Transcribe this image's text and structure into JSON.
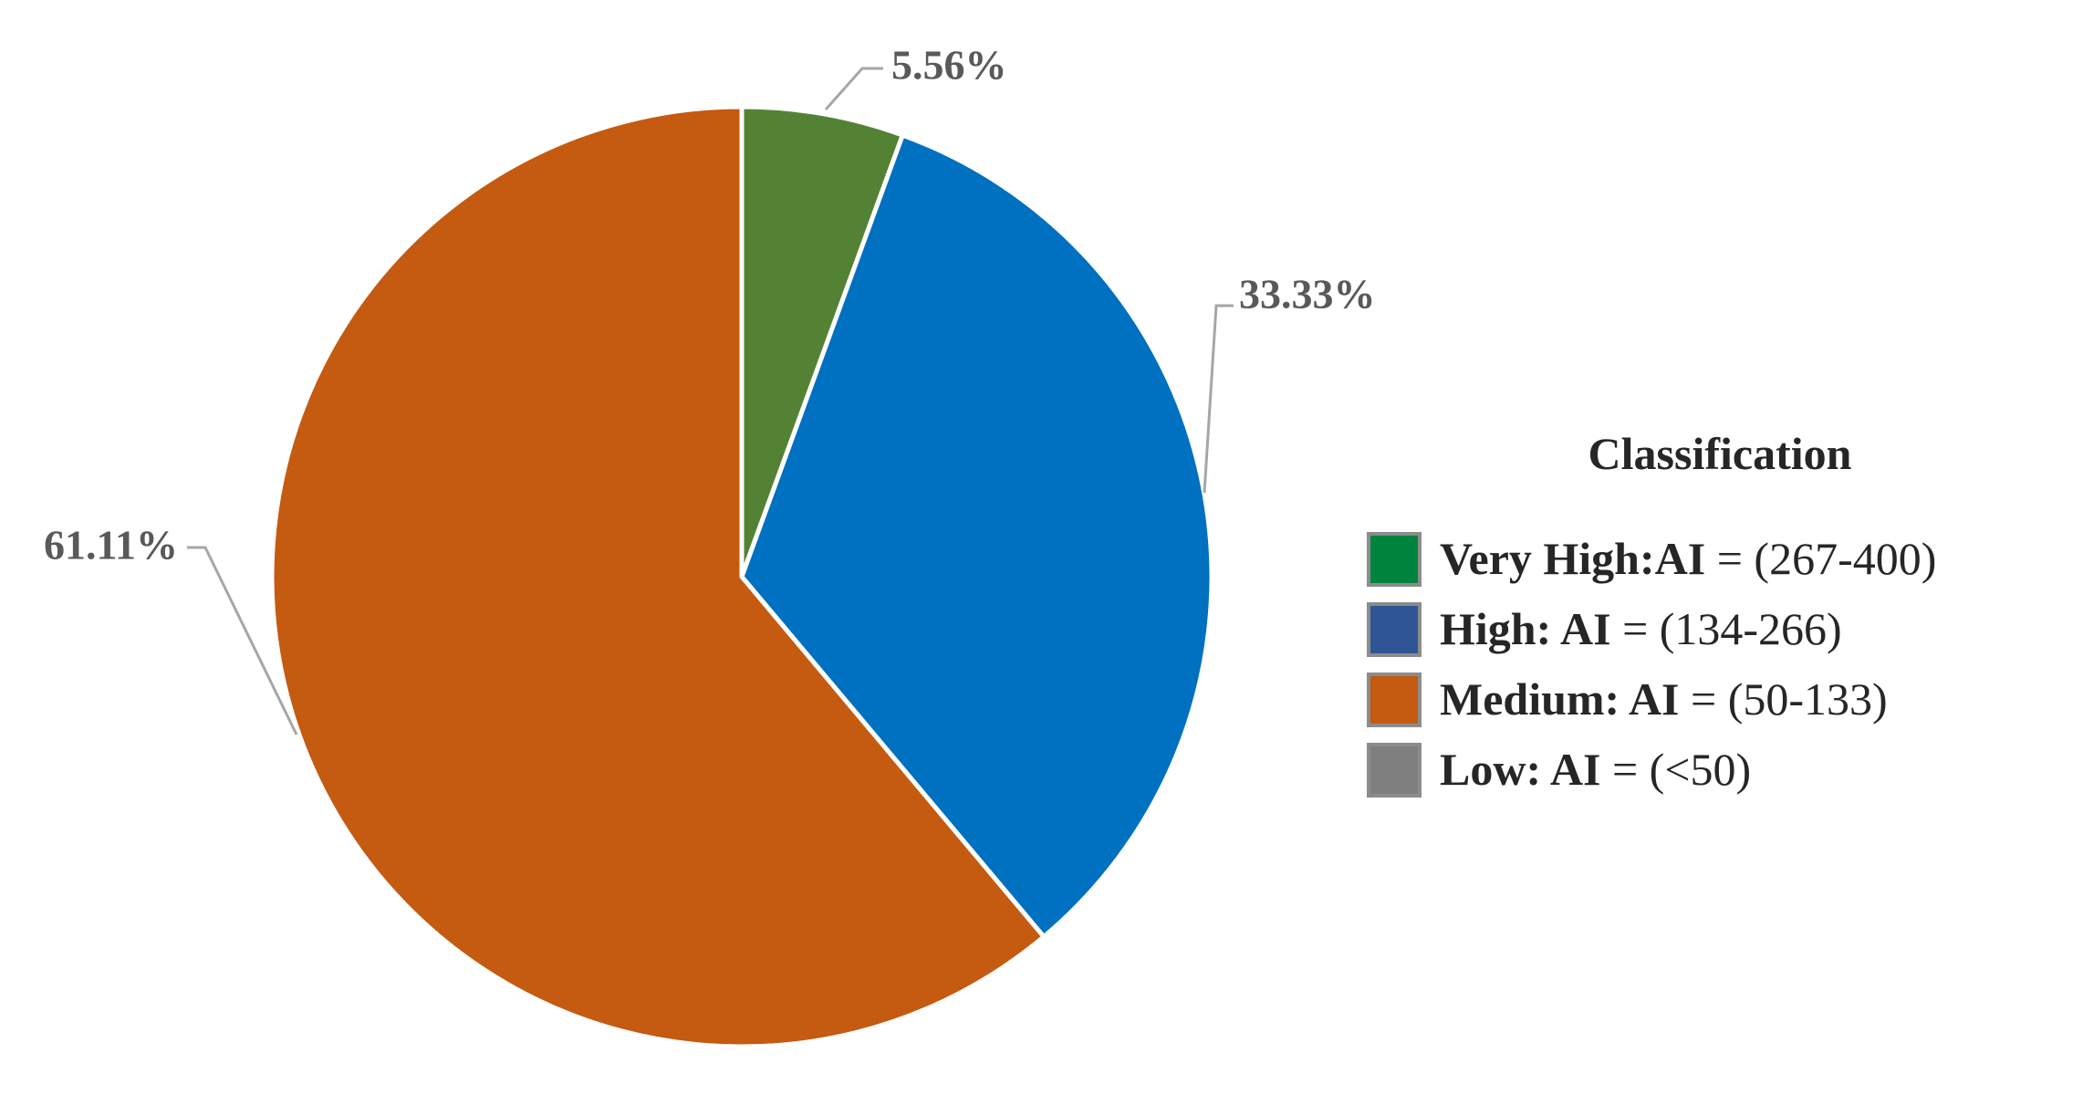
{
  "chart_data": {
    "type": "pie",
    "title": "",
    "start_angle_deg": 0,
    "direction": "clockwise",
    "slices": [
      {
        "key": "very_high",
        "value": 5.56,
        "label": "5.56%",
        "color": "#548235"
      },
      {
        "key": "high",
        "value": 33.33,
        "label": "33.33%",
        "color": "#0070C0"
      },
      {
        "key": "medium",
        "value": 61.11,
        "label": "61.11%",
        "color": "#C55A11"
      }
    ],
    "legend": {
      "title": "Classification",
      "placement": "right",
      "items": [
        {
          "key": "very_high",
          "name": "Very High:",
          "ai_prefix": "AI",
          "range": " = (267-400)",
          "color": "#00843D"
        },
        {
          "key": "high",
          "name": "High: ",
          "ai_prefix": "AI",
          "range": " = (134-266)",
          "color": "#2F5597"
        },
        {
          "key": "medium",
          "name": "Medium: ",
          "ai_prefix": "AI",
          "range": " = (50-133)",
          "color": "#C55A11"
        },
        {
          "key": "low",
          "name": "Low: ",
          "ai_prefix": "AI",
          "range": " = (<50)",
          "color": "#7F7F7F"
        }
      ]
    }
  }
}
